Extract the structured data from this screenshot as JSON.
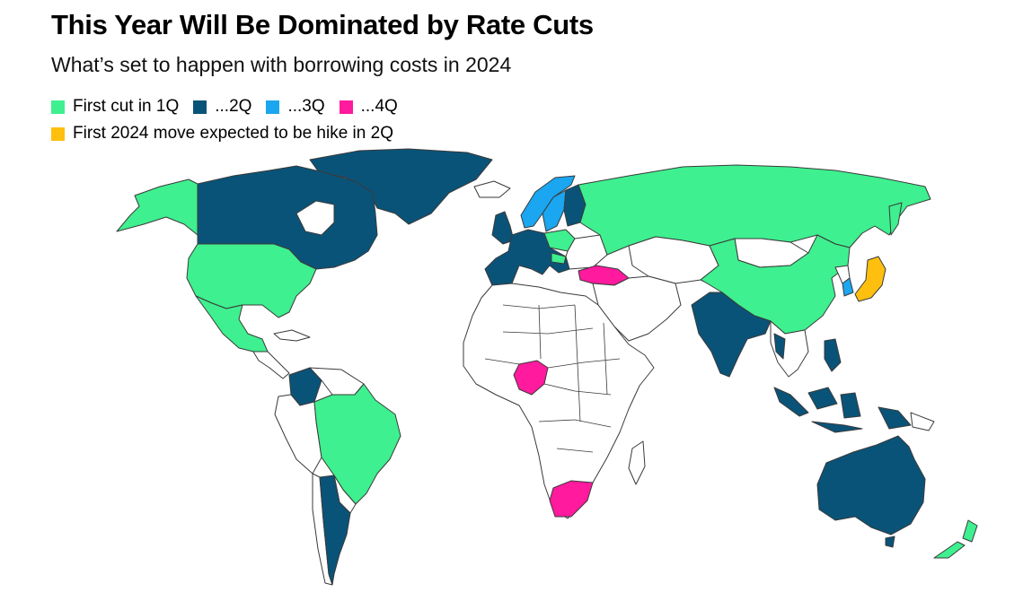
{
  "header": {
    "title": "This Year Will Be Dominated by Rate Cuts",
    "subtitle": "What’s set to happen with borrowing costs in 2024"
  },
  "legend": {
    "items": [
      {
        "label": "First cut in 1Q",
        "color": "#3ef08f"
      },
      {
        "label": "...2Q",
        "color": "#0a5378"
      },
      {
        "label": "...3Q",
        "color": "#1aa6f0"
      },
      {
        "label": "...4Q",
        "color": "#ff1a9e"
      },
      {
        "label": "First 2024 move expected to be hike in 2Q",
        "color": "#ffbf0f"
      }
    ]
  },
  "map": {
    "neutral_color": "#ffffff",
    "groups": {
      "first_cut_1q": [
        "United States",
        "Mexico",
        "Brazil",
        "Russia",
        "China",
        "Poland",
        "Hungary",
        "New Zealand",
        "Alaska"
      ],
      "first_cut_2q": [
        "Canada",
        "Greenland",
        "Eurozone",
        "United Kingdom",
        "India",
        "Indonesia",
        "Philippines",
        "Australia",
        "Argentina",
        "Colombia",
        "Thailand"
      ],
      "first_cut_3q": [
        "Sweden",
        "Norway",
        "South Korea"
      ],
      "first_cut_4q": [
        "Turkey",
        "Nigeria",
        "South Africa"
      ],
      "hike_2q": [
        "Japan"
      ]
    }
  }
}
